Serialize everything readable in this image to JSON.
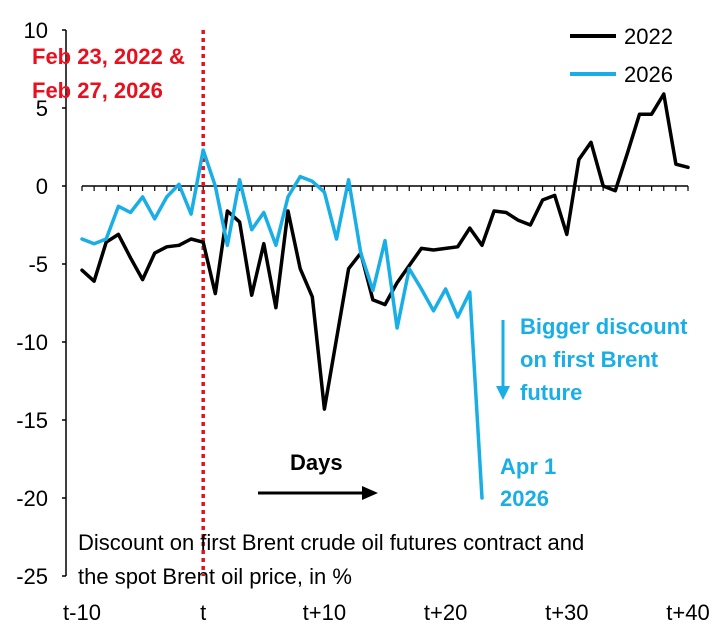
{
  "chart_data": {
    "type": "line",
    "title": "",
    "xlabel": "Days",
    "ylabel": "",
    "ylim": [
      -25,
      10
    ],
    "xlim": [
      -10,
      40
    ],
    "yticks": [
      10,
      5,
      0,
      -5,
      -10,
      -15,
      -20,
      -25
    ],
    "xticks": [
      {
        "label": "t-10",
        "x": -10
      },
      {
        "label": "t",
        "x": 0
      },
      {
        "label": "t+10",
        "x": 10
      },
      {
        "label": "t+20",
        "x": 20
      },
      {
        "label": "t+30",
        "x": 30
      },
      {
        "label": "t+40",
        "x": 40
      }
    ],
    "series": [
      {
        "name": "2022",
        "color": "#000000",
        "x": [
          -10,
          -9,
          -8,
          -7,
          -6,
          -5,
          -4,
          -3,
          -2,
          -1,
          0,
          1,
          2,
          3,
          4,
          5,
          6,
          7,
          8,
          9,
          10,
          11,
          12,
          13,
          14,
          15,
          16,
          17,
          18,
          19,
          20,
          21,
          22,
          23,
          24,
          25,
          26,
          27,
          28,
          29,
          30,
          31,
          32,
          33,
          34,
          35,
          36,
          37,
          38,
          39,
          40
        ],
        "values": [
          -5.4,
          -6.1,
          -3.6,
          -3.1,
          -4.6,
          -6.0,
          -4.3,
          -3.9,
          -3.8,
          -3.4,
          -3.6,
          -6.9,
          -1.6,
          -2.3,
          -7.0,
          -3.7,
          -7.8,
          -1.6,
          -5.3,
          -7.1,
          -14.3,
          -9.8,
          -5.3,
          -4.3,
          -7.3,
          -7.6,
          -6.2,
          -5.1,
          -4.0,
          -4.1,
          -4.0,
          -3.9,
          -2.7,
          -3.8,
          -1.6,
          -1.7,
          -2.2,
          -2.5,
          -0.9,
          -0.6,
          -3.1,
          1.7,
          2.8,
          0.0,
          -0.3,
          2.1,
          4.6,
          4.6,
          5.9,
          1.4,
          1.2
        ]
      },
      {
        "name": "2026",
        "color": "#1aaee6",
        "x": [
          -10,
          -9,
          -8,
          -7,
          -6,
          -5,
          -4,
          -3,
          -2,
          -1,
          0,
          1,
          2,
          3,
          4,
          5,
          6,
          7,
          8,
          9,
          10,
          11,
          12,
          13,
          14,
          15,
          16,
          17,
          18,
          19,
          20,
          21,
          22,
          23
        ],
        "values": [
          -3.4,
          -3.7,
          -3.4,
          -1.3,
          -1.7,
          -0.7,
          -2.1,
          -0.7,
          0.1,
          -1.8,
          2.3,
          0.0,
          -3.8,
          0.4,
          -2.8,
          -1.7,
          -3.8,
          -0.7,
          0.6,
          0.3,
          -0.4,
          -3.4,
          0.4,
          -4.3,
          -6.7,
          -3.5,
          -9.1,
          -5.3,
          -6.6,
          -8.0,
          -6.6,
          -8.4,
          -6.8,
          -20.0
        ]
      }
    ],
    "legend": {
      "position": "top-right",
      "items": [
        "2022",
        "2026"
      ]
    },
    "annotations": {
      "event_line_label_1": "Feb 23, 2022 &",
      "event_line_label_2": "Feb 27, 2026",
      "days_label": "Days",
      "discount_note_1": "Bigger discount",
      "discount_note_2": "on first Brent",
      "discount_note_3": "future",
      "end_label_1": "Apr 1",
      "end_label_2": "2026",
      "description_1": "Discount on first Brent crude oil futures contract and",
      "description_2": "the spot Brent oil price, in %"
    },
    "colors": {
      "event_line": "#e8101e",
      "annotation_blue": "#1aaee6",
      "axis": "#000000"
    }
  }
}
